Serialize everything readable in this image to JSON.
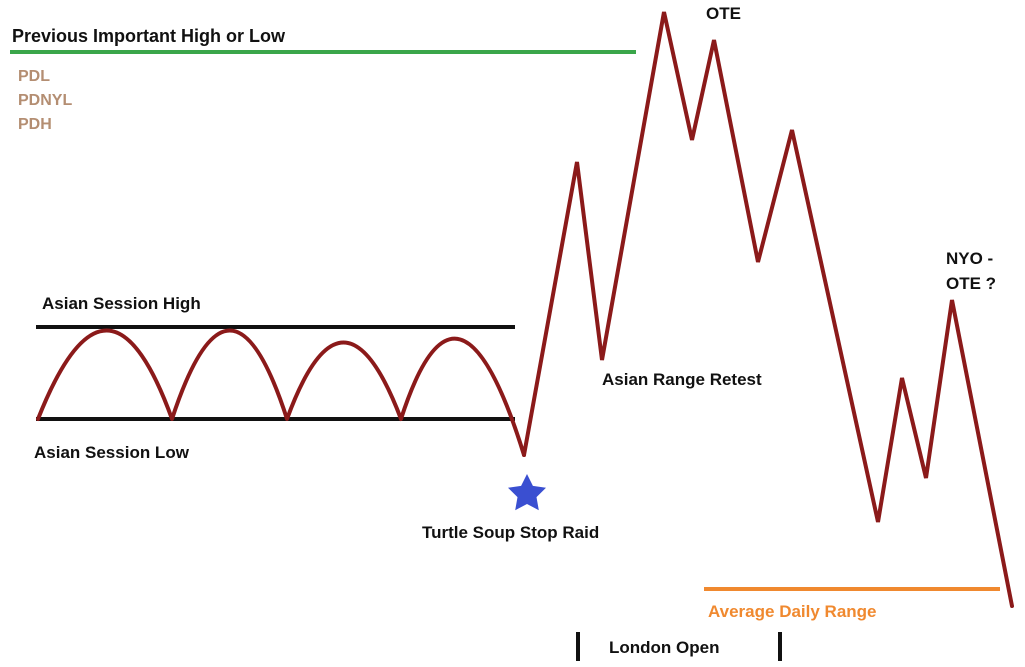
{
  "title": "",
  "colors": {
    "price_path": "#8b1a1a",
    "session_lines": "#111111",
    "previous_high_low_line": "#3aa64a",
    "average_daily_range_line": "#f0892f",
    "average_daily_range_text": "#f0892f",
    "reference_levels_text": "#b48e72",
    "star": "#3a4fd1"
  },
  "icons": {
    "raid_marker": "star-icon"
  },
  "labels": {
    "previous_high_low": "Previous Important High or Low",
    "reference_levels": [
      "PDL",
      "PDNYL",
      "PDH"
    ],
    "asian_session_high": "Asian Session High",
    "asian_session_low": "Asian Session Low",
    "turtle_soup": "Turtle Soup Stop Raid",
    "asian_range_retest": "Asian Range Retest",
    "ote": "OTE",
    "nyo_ote": [
      "NYO -",
      "OTE ?"
    ],
    "average_daily_range": "Average Daily Range",
    "london_open": "London Open"
  }
}
